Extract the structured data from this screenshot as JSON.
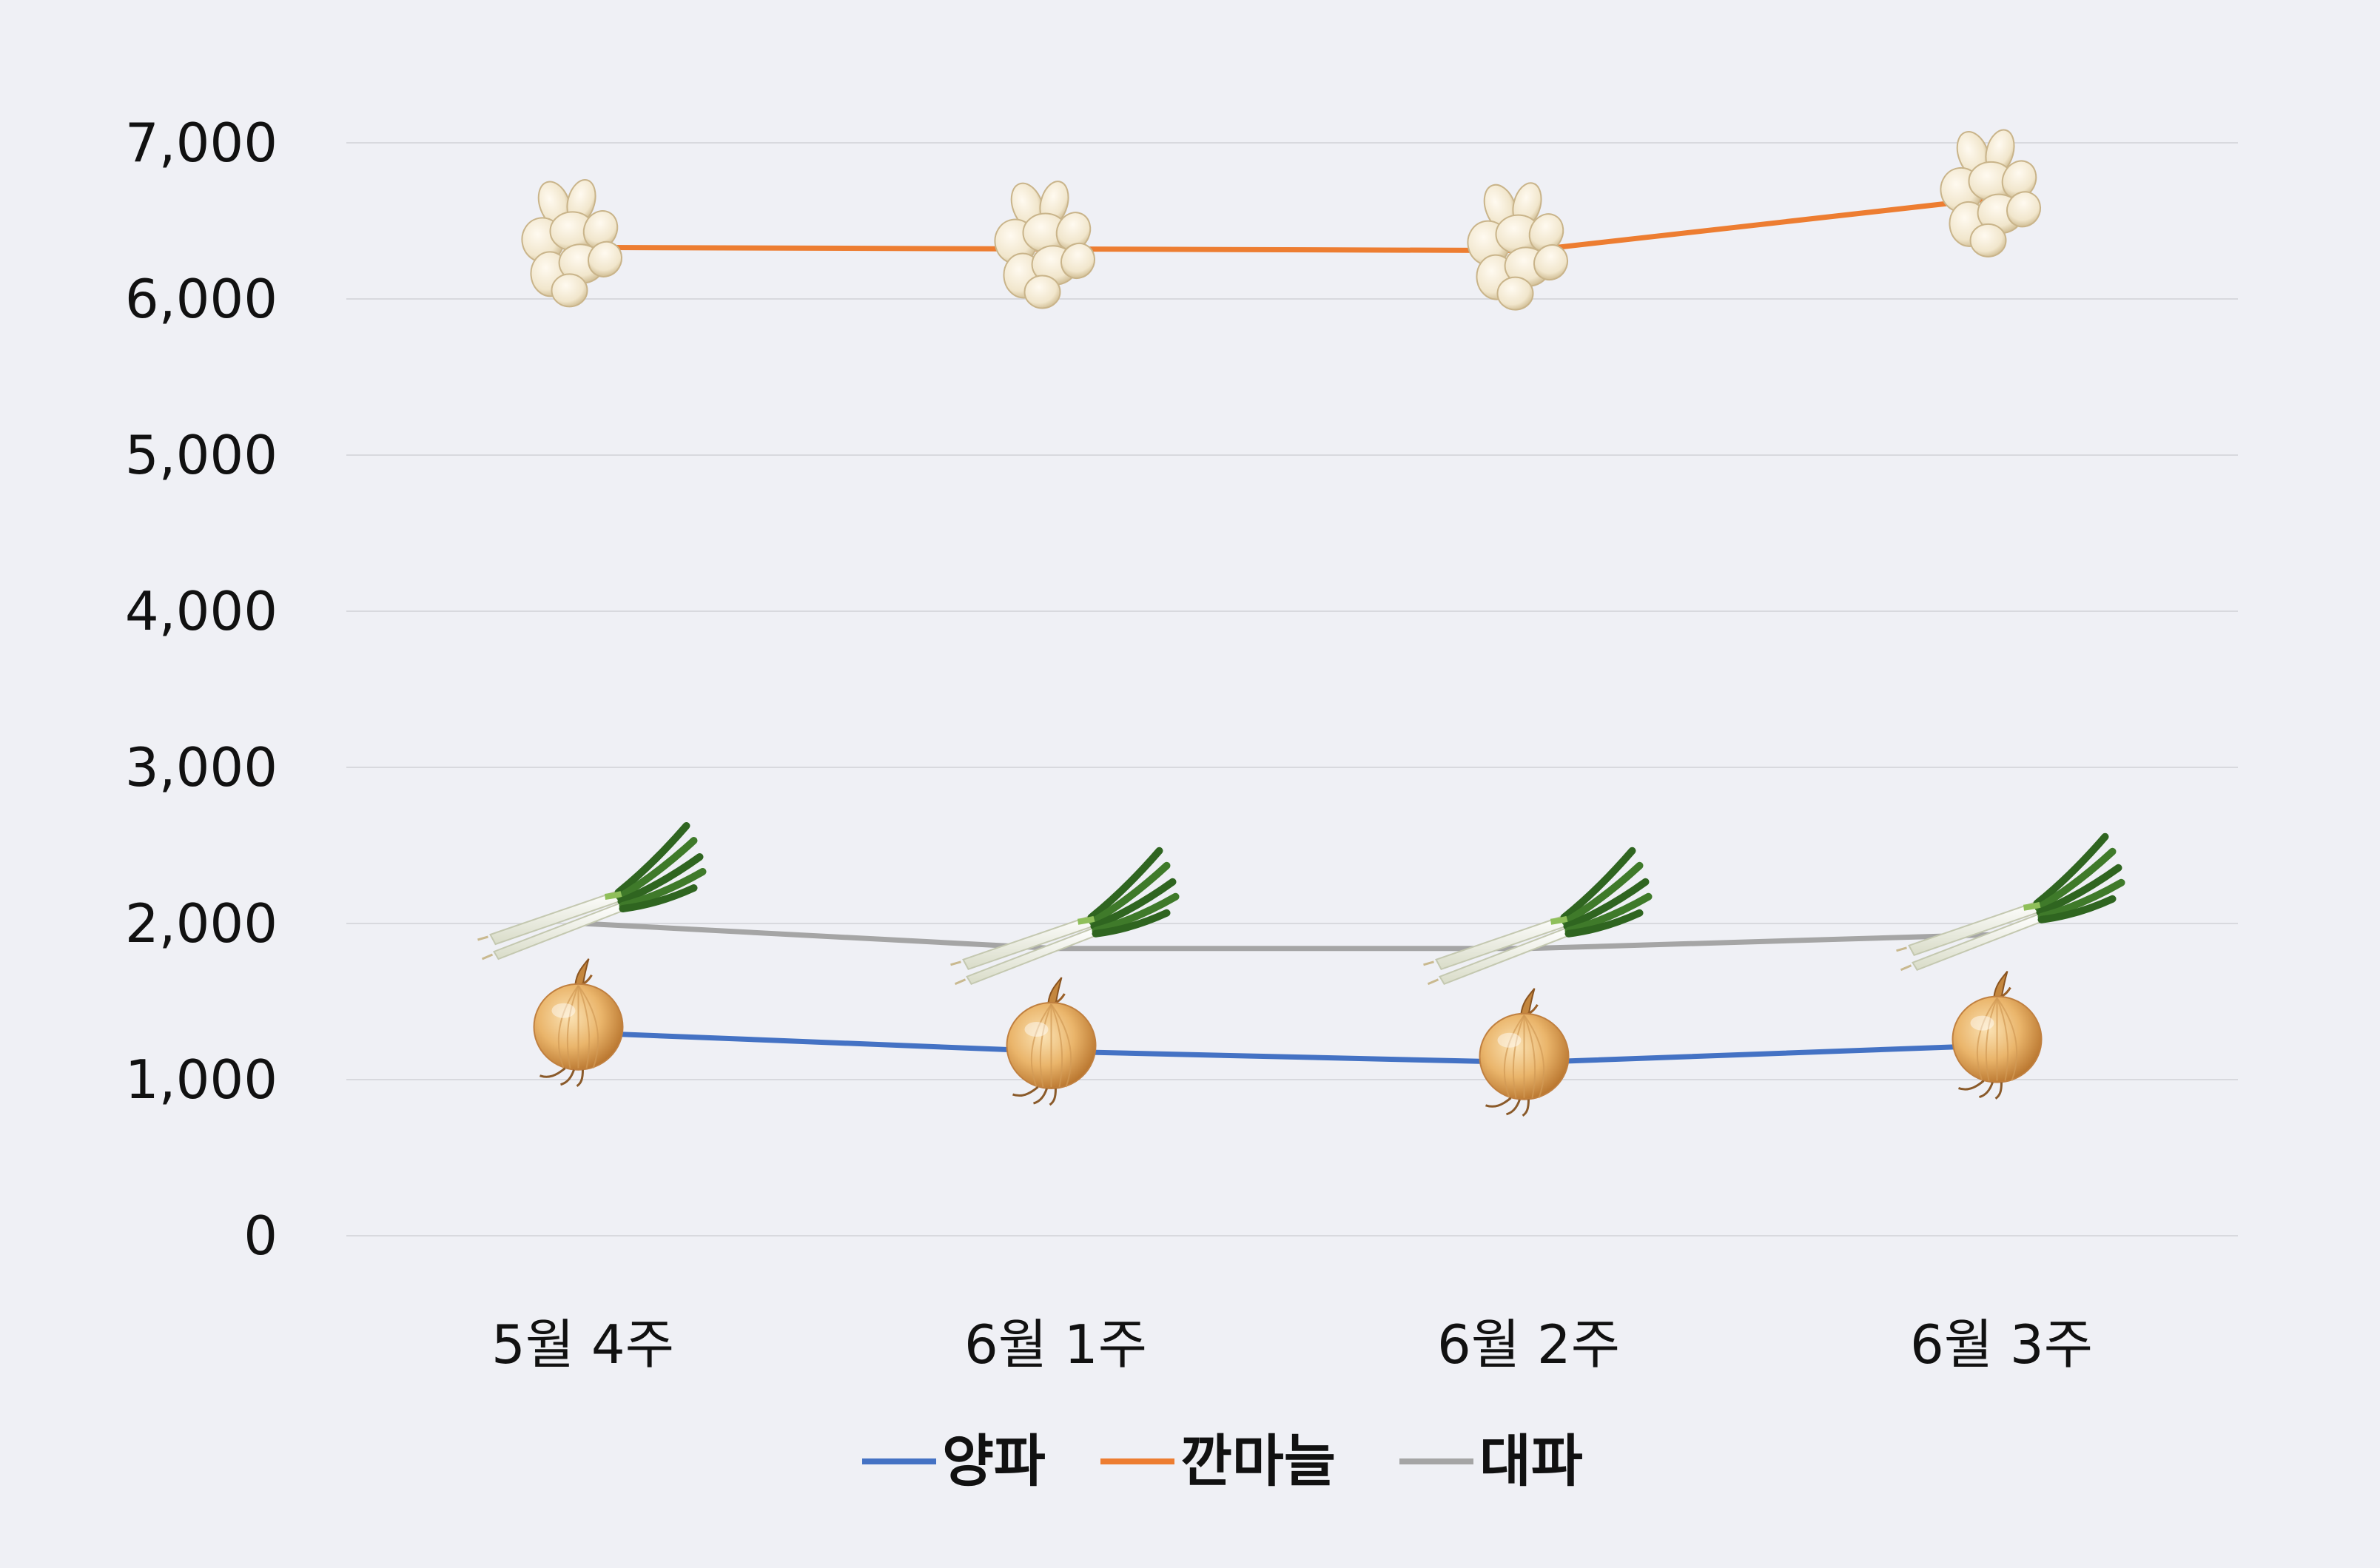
{
  "chart_data": {
    "type": "line",
    "categories": [
      "5월 4주",
      "6월 1주",
      "6월 2주",
      "6월 3주"
    ],
    "series": [
      {
        "name": "양파",
        "color": "#4472c4",
        "icon": "onion-icon",
        "values": [
          1300,
          1180,
          1110,
          1220
        ]
      },
      {
        "name": "깐마늘",
        "color": "#ed7d31",
        "icon": "garlic-icon",
        "values": [
          6330,
          6320,
          6310,
          6650
        ]
      },
      {
        "name": "대파",
        "color": "#a5a5a5",
        "icon": "green-onion-icon",
        "values": [
          2000,
          1840,
          1840,
          1930
        ]
      }
    ],
    "y_ticks": [
      "0",
      "1,000",
      "2,000",
      "3,000",
      "4,000",
      "5,000",
      "6,000",
      "7,000"
    ],
    "ylim": [
      0,
      7000
    ],
    "grid": true,
    "legend_position": "bottom"
  }
}
